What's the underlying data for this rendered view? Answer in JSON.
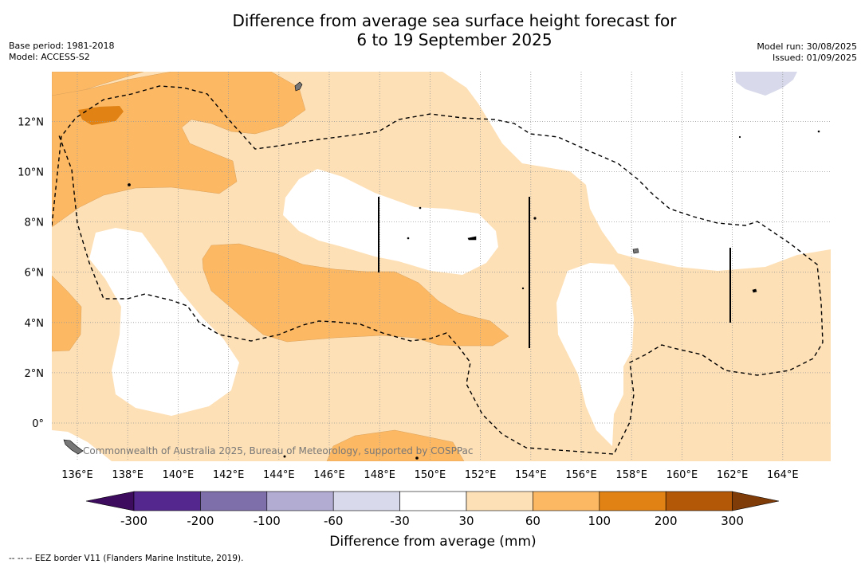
{
  "title_line1": "Difference from average sea surface height forecast for",
  "title_line2": "6 to 19 September 2025",
  "base_period": "Base period: 1981-2018",
  "model": "Model: ACCESS-S2",
  "model_run": "Model run: 30/08/2025",
  "issued": "Issued: 01/09/2025",
  "watermark": "Commonwealth of Australia 2025, Bureau of Meteorology, supported by COSPPac",
  "footnote": "--  --  -- EEZ border V11 (Flanders Marine Institute, 2019).",
  "colors": {
    "c_m300": "#3d0c5e",
    "c_m200": "#54278f",
    "c_m100": "#7e6fab",
    "c_m60": "#b2abd2",
    "c_m30": "#d8daeb",
    "c_0": "#ffffff",
    "c_30": "#fee0b6",
    "c_60": "#fdb863",
    "c_100": "#e08214",
    "c_200": "#b35806",
    "c_300": "#7f3b08"
  },
  "chart_data": {
    "type": "heatmap",
    "title": "Difference from average sea surface height forecast for 6 to 19 September 2025",
    "x_ticks": [
      "136°E",
      "138°E",
      "140°E",
      "142°E",
      "144°E",
      "146°E",
      "148°E",
      "150°E",
      "152°E",
      "154°E",
      "156°E",
      "158°E",
      "160°E",
      "162°E",
      "164°E"
    ],
    "y_ticks": [
      "12°N",
      "10°N",
      "8°N",
      "6°N",
      "4°N",
      "2°N",
      "0°"
    ],
    "xlim": [
      135,
      166
    ],
    "ylim": [
      -1.5,
      13.8
    ],
    "grid": true,
    "colorbar": {
      "label": "Difference from average (mm)",
      "tick_labels": [
        "-300",
        "-200",
        "-100",
        "-60",
        "-30",
        "30",
        "60",
        "100",
        "200",
        "300"
      ],
      "levels": [
        -300,
        -200,
        -100,
        -60,
        -30,
        30,
        60,
        100,
        200,
        300
      ],
      "extend": "both"
    },
    "regions": [
      {
        "range": "30 to 60",
        "description": "widespread light orange band across most of the domain"
      },
      {
        "range": "60 to 100",
        "description": "north-west area around 135-142E 9-13N, band 142-153E 3-6N, west edge 135-136E 3-5N, small area near 147-150E -1N"
      },
      {
        "range": "100 to 200",
        "description": "small patch near 136.5-138.5E 12-13N"
      },
      {
        "range": "-30 to 30",
        "description": "white areas e.g. 145.5-152.5E 6-9N, 137-142E 0.5-7N, 154-158E 1-6N, north-east 152-165E 8-14N"
      },
      {
        "range": "-60 to -30",
        "description": "small patch near 163E 13.5N"
      }
    ]
  }
}
